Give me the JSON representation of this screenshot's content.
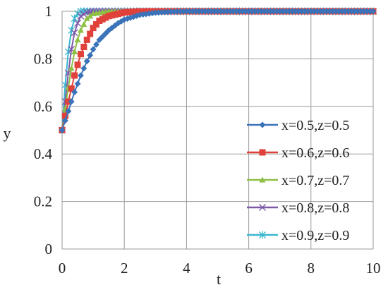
{
  "chart_data": {
    "type": "line",
    "title": "",
    "xlabel": "t",
    "ylabel": "y",
    "xlim": [
      0,
      10
    ],
    "ylim": [
      0,
      1
    ],
    "xticks": [
      0,
      2,
      4,
      6,
      8,
      10
    ],
    "yticks": [
      0,
      0.2,
      0.4,
      0.6,
      0.8,
      1
    ],
    "xtick_labels": [
      "0",
      "2",
      "4",
      "6",
      "8",
      "10"
    ],
    "ytick_labels": [
      "0",
      "0.2",
      "0.4",
      "0.6",
      "0.8",
      "1"
    ],
    "grid": true,
    "legend_position": "center-right",
    "marker_every_t": 0.1,
    "series": [
      {
        "name": "x=0.5,z=0.5",
        "color": "#3a73b9",
        "marker": "diamond",
        "t": [
          0,
          0.2,
          0.4,
          0.6,
          0.8,
          1.0,
          1.2,
          1.5,
          1.8,
          2.0,
          2.5,
          3.0,
          3.5,
          4.0,
          10.0
        ],
        "y": [
          0.5,
          0.58,
          0.66,
          0.73,
          0.79,
          0.84,
          0.88,
          0.92,
          0.95,
          0.965,
          0.985,
          0.994,
          0.998,
          1.0,
          1.0
        ]
      },
      {
        "name": "x=0.6,z=0.6",
        "color": "#e0413a",
        "marker": "square",
        "t": [
          0,
          0.2,
          0.4,
          0.6,
          0.8,
          1.0,
          1.2,
          1.5,
          2.0,
          2.5,
          10.0
        ],
        "y": [
          0.5,
          0.62,
          0.73,
          0.82,
          0.88,
          0.93,
          0.96,
          0.98,
          0.995,
          1.0,
          1.0
        ]
      },
      {
        "name": "x=0.7,z=0.7",
        "color": "#8fc045",
        "marker": "triangle",
        "t": [
          0,
          0.1,
          0.2,
          0.3,
          0.4,
          0.5,
          0.6,
          0.8,
          1.0,
          1.5,
          10.0
        ],
        "y": [
          0.5,
          0.59,
          0.68,
          0.76,
          0.83,
          0.88,
          0.92,
          0.97,
          0.99,
          1.0,
          1.0
        ]
      },
      {
        "name": "x=0.8,z=0.8",
        "color": "#7f5aa8",
        "marker": "x",
        "t": [
          0,
          0.1,
          0.2,
          0.3,
          0.4,
          0.5,
          0.6,
          0.8,
          1.0,
          10.0
        ],
        "y": [
          0.5,
          0.62,
          0.74,
          0.84,
          0.91,
          0.95,
          0.98,
          0.995,
          1.0,
          1.0
        ]
      },
      {
        "name": "x=0.9,z=0.9",
        "color": "#3cb6cf",
        "marker": "asterisk",
        "t": [
          0,
          0.1,
          0.2,
          0.3,
          0.4,
          0.5,
          0.6,
          0.8,
          10.0
        ],
        "y": [
          0.5,
          0.69,
          0.83,
          0.92,
          0.97,
          0.99,
          1.0,
          1.0,
          1.0
        ]
      }
    ]
  }
}
